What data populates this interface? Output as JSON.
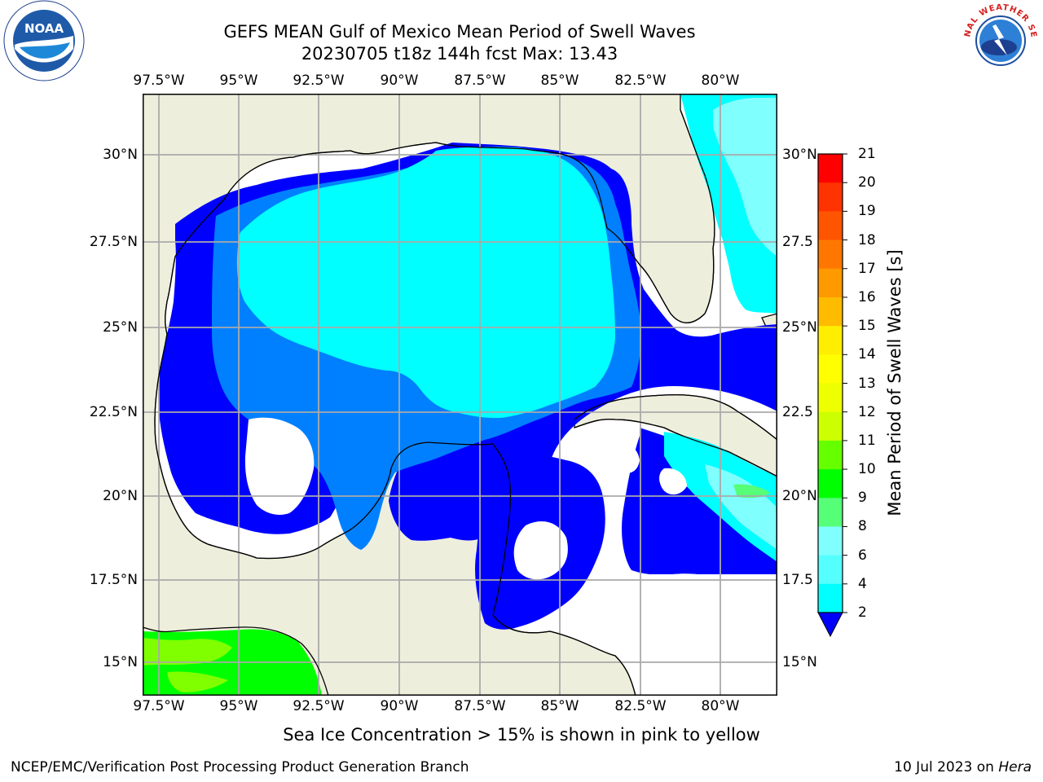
{
  "title_line1": "GEFS MEAN Gulf of Mexico Mean Period of Swell Waves",
  "title_line2": "20230705 t18z 144h fcst   Max: 13.43",
  "logos": {
    "left": {
      "name": "noaa-logo",
      "text": "NOAA"
    },
    "right": {
      "name": "nws-logo",
      "text": "NATIONAL WEATHER SERVICE"
    }
  },
  "map": {
    "lon_labels": [
      "97.5°W",
      "95°W",
      "92.5°W",
      "90°W",
      "87.5°W",
      "85°W",
      "82.5°W",
      "80°W"
    ],
    "lat_labels_left": [
      "30°N",
      "27.5°N",
      "25°N",
      "22.5°N",
      "20°N",
      "17.5°N",
      "15°N"
    ],
    "lat_labels_right": [
      "30°N",
      "27.5",
      "25°N",
      "22.5",
      "20°N",
      "17.5",
      "15°N"
    ],
    "colors": {
      "land": "#eeeedd",
      "level_2_4": "#0000ff",
      "level_4_6": "#0080ff",
      "level_6_8": "#00ffff",
      "level_8_9": "#80ffff",
      "level_10_11": "#00ff00",
      "level_11_12": "#7fff00",
      "grid": "#aaaaaa",
      "coast": "#000000"
    }
  },
  "colorbar": {
    "label": "Mean Period of Swell Waves [s]",
    "ticks": [
      "21",
      "20",
      "19",
      "18",
      "17",
      "16",
      "15",
      "14",
      "13",
      "12",
      "11",
      "10",
      "9",
      "8",
      "6",
      "4",
      "2"
    ],
    "colors": [
      "#ff0000",
      "#ff3300",
      "#ff5500",
      "#ff7700",
      "#ff9900",
      "#ffbb00",
      "#ffee00",
      "#ffff00",
      "#eeff00",
      "#ccff00",
      "#66ff00",
      "#00ff00",
      "#55ff77",
      "#80ffff",
      "#55ffff",
      "#00ffff",
      "#0080ff",
      "#0000ff"
    ]
  },
  "footer": {
    "note": "Sea Ice Concentration > 15% is shown in pink to yellow",
    "left": "NCEP/EMC/Verification Post Processing Product Generation Branch",
    "right_date": "10 Jul 2023 on ",
    "right_host": "Hera"
  }
}
